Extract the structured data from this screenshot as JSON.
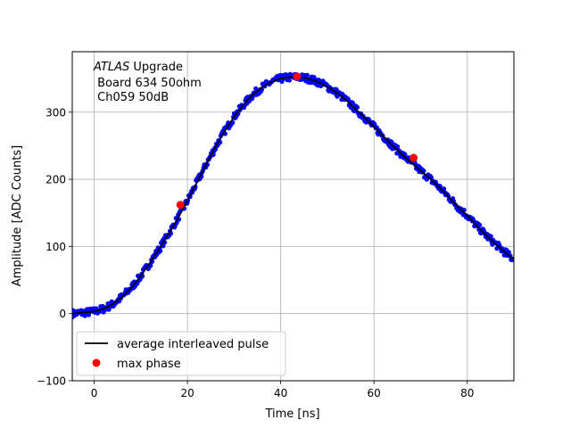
{
  "chart_data": {
    "type": "scatter",
    "title": "",
    "xlabel": "Time [ns]",
    "ylabel": "Amplitude [ADC Counts]",
    "xlim": [
      -4.7,
      90
    ],
    "ylim": [
      -100,
      390
    ],
    "xticks": [
      0,
      20,
      40,
      60,
      80
    ],
    "yticks": [
      -100,
      0,
      100,
      200,
      300
    ],
    "grid": true,
    "annotation": {
      "italic": "ATLAS",
      "rest": " Upgrade",
      "line2": " Board 634 50ohm",
      "line3": " Ch059 50dB"
    },
    "legend": {
      "placement": "lower-left",
      "entries": [
        "average interleaved pulse",
        "max phase"
      ]
    },
    "colors": {
      "samples": "#0000ff",
      "average": "#000000",
      "max_phase": "#ff0000"
    },
    "series": [
      {
        "name": "average interleaved pulse",
        "kind": "line",
        "x": [
          -4.7,
          0,
          2,
          4,
          6,
          8,
          10,
          12,
          14,
          16,
          18,
          20,
          22,
          24,
          26,
          28,
          30,
          32,
          34,
          36,
          38,
          40,
          42,
          44,
          46,
          48,
          50,
          52,
          54,
          56,
          58,
          60,
          62,
          64,
          66,
          68,
          70,
          72,
          74,
          76,
          78,
          80,
          82,
          84,
          86,
          88,
          90
        ],
        "y": [
          0,
          3,
          7,
          14,
          25,
          39,
          56,
          76,
          97,
          119,
          143,
          168,
          195,
          222,
          248,
          272,
          293,
          311,
          326,
          337,
          345,
          350,
          352,
          352,
          350,
          345,
          338,
          329,
          318,
          305,
          292,
          278,
          264,
          250,
          237,
          225,
          213,
          201,
          188,
          174,
          159,
          146,
          131,
          117,
          104,
          92,
          80
        ]
      },
      {
        "name": "max phase",
        "kind": "points",
        "x": [
          18.5,
          43.5,
          68.5
        ],
        "y": [
          162,
          353,
          232
        ]
      }
    ]
  }
}
